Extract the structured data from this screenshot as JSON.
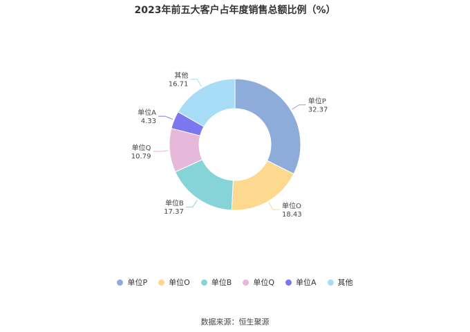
{
  "chart_data": {
    "type": "pie",
    "title": "2023年前五大客户占年度销售总额比例（%）",
    "donut": true,
    "slices": [
      {
        "label": "单位P",
        "value": 32.37,
        "color": "#8eacd9"
      },
      {
        "label": "单位O",
        "value": 18.43,
        "color": "#fdd88f"
      },
      {
        "label": "单位B",
        "value": 17.37,
        "color": "#86d4d8"
      },
      {
        "label": "单位Q",
        "value": 10.79,
        "color": "#e6b8da"
      },
      {
        "label": "单位A",
        "value": 4.33,
        "color": "#7b78ef"
      },
      {
        "label": "其他",
        "value": 16.71,
        "color": "#a7ddf7"
      }
    ],
    "legend_position": "bottom"
  },
  "source": "数据来源：恒生聚源"
}
